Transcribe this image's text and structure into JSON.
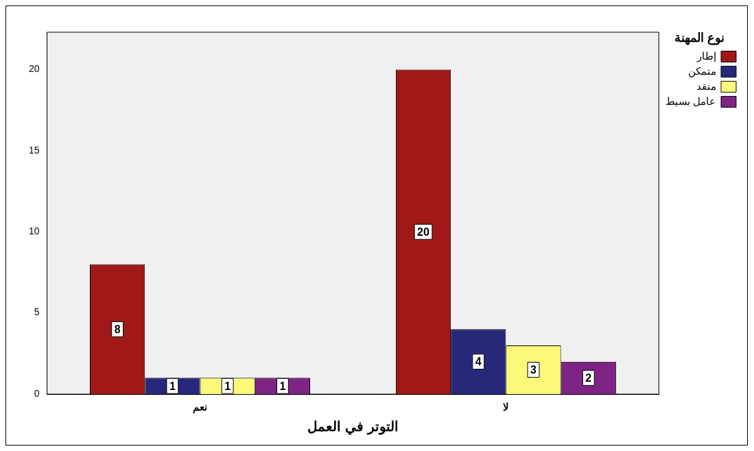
{
  "chart_data": {
    "type": "bar",
    "xlabel": "التوتر في العمل",
    "legend_title": "نوع المهنة",
    "categories": [
      "نعم",
      "لا"
    ],
    "series": [
      {
        "name": "إطار",
        "color": "#a01818",
        "values": [
          8,
          20
        ]
      },
      {
        "name": "متمكن",
        "color": "#27287a",
        "values": [
          1,
          4
        ]
      },
      {
        "name": "منقد",
        "color": "#fbf87a",
        "values": [
          1,
          3
        ]
      },
      {
        "name": "عامل بسيط",
        "color": "#7e2484",
        "values": [
          1,
          2
        ]
      }
    ],
    "ylim": [
      0,
      22.3
    ],
    "yticks": [
      0,
      5,
      10,
      15,
      20
    ],
    "grid": false,
    "legend": "top right",
    "data_labels": true
  }
}
